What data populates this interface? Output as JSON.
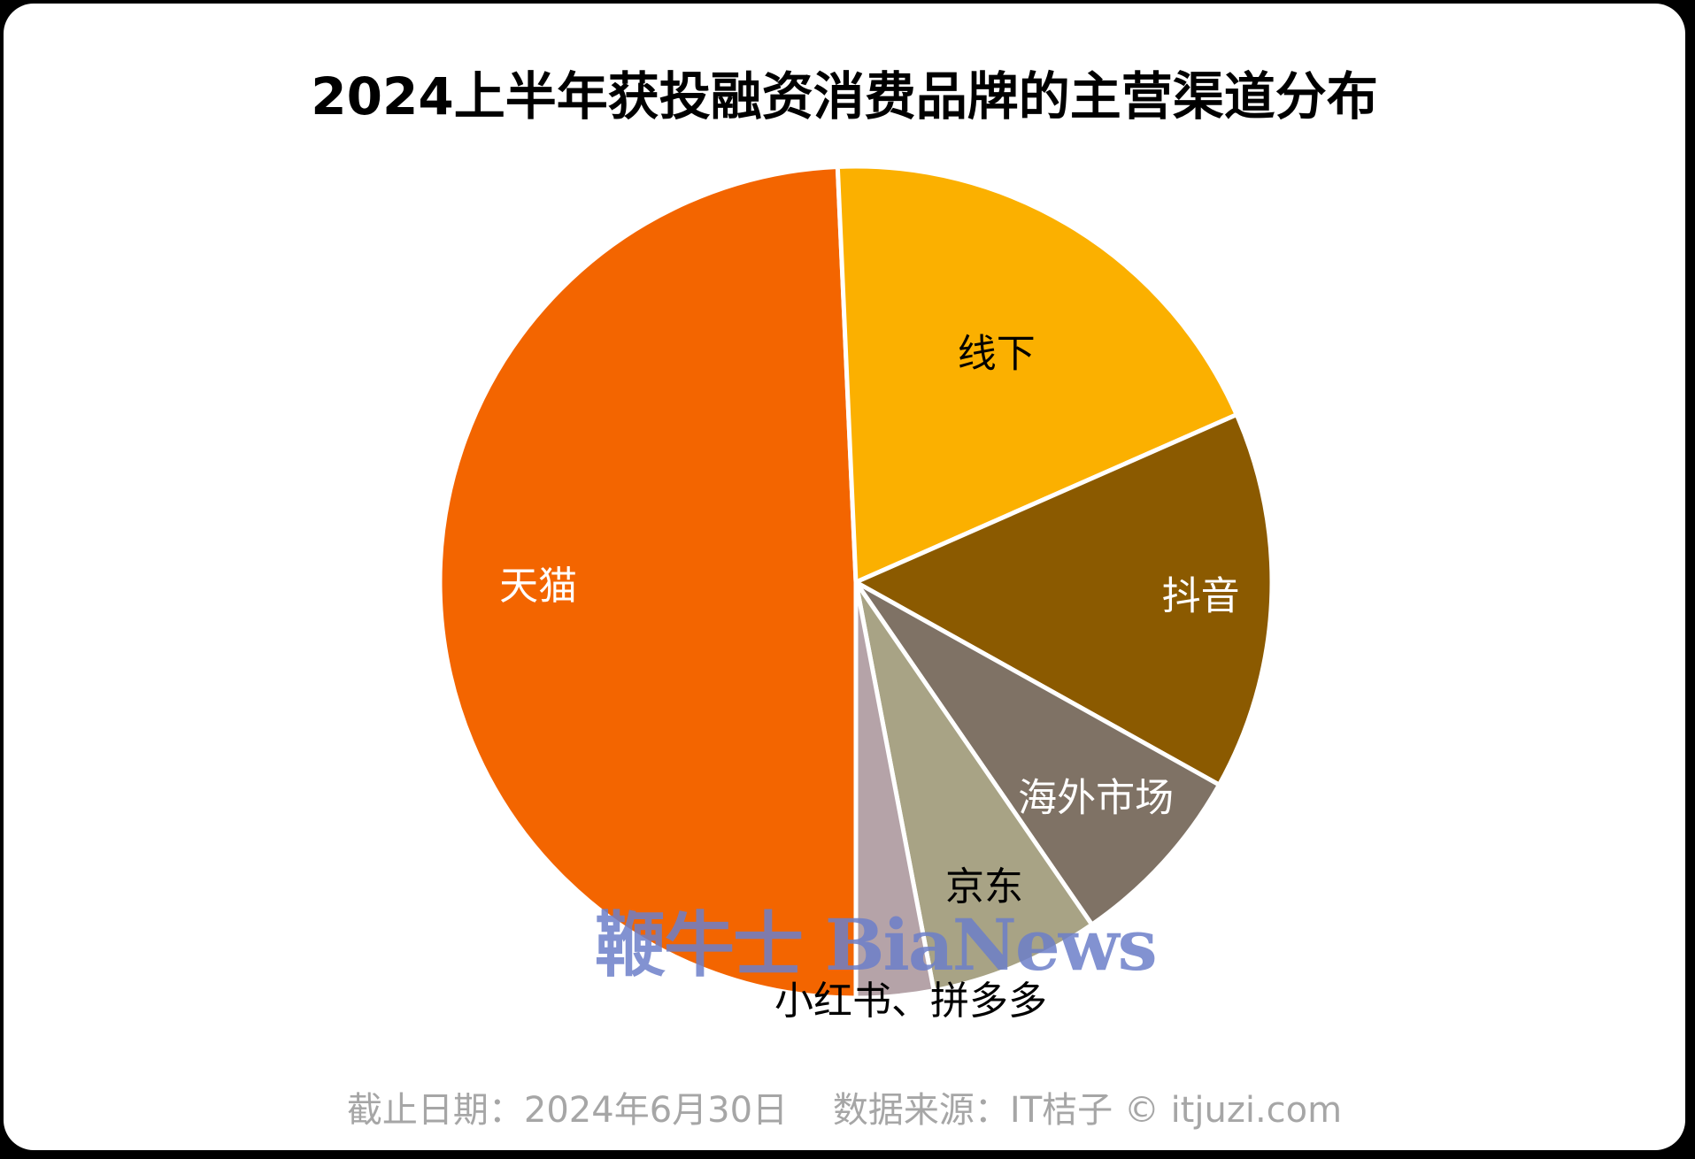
{
  "chart_data": {
    "type": "pie",
    "title": "2024上半年获投融资消费品牌的主营渠道分布",
    "slices": [
      {
        "label": "天猫",
        "value": 49.3,
        "color": "#f36500",
        "label_color": "#ffffff"
      },
      {
        "label": "线下",
        "value": 19.1,
        "color": "#fbb000",
        "label_color": "#000000"
      },
      {
        "label": "抖音",
        "value": 14.7,
        "color": "#8b5a00",
        "label_color": "#ffffff"
      },
      {
        "label": "海外市场",
        "value": 7.3,
        "color": "#7f7265",
        "label_color": "#ffffff"
      },
      {
        "label": "京东",
        "value": 6.6,
        "color": "#a8a385",
        "label_color": "#000000"
      },
      {
        "label": "小红书、拼多多",
        "value": 3.0,
        "color": "#b5a3a8",
        "label_color": "#000000"
      }
    ]
  },
  "footer": "截止日期：2024年6月30日    数据来源：IT桔子 © itjuzi.com",
  "watermark": "鞭牛士 BiaNews"
}
